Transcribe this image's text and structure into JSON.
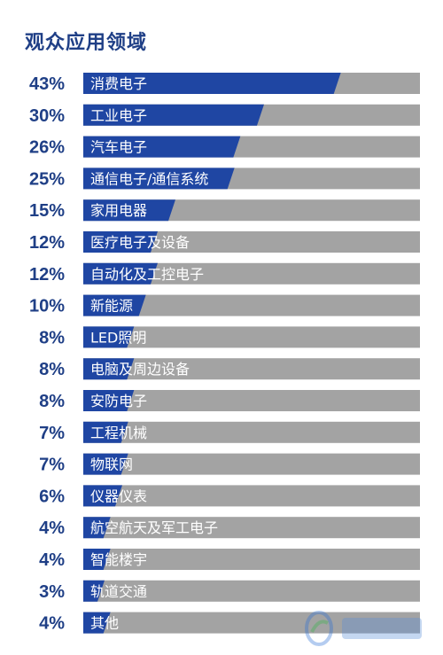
{
  "title": "观众应用领域",
  "chart_data": {
    "type": "bar",
    "orientation": "horizontal",
    "title": "观众应用领域",
    "categories": [
      "消费电子",
      "工业电子",
      "汽车电子",
      "通信电子/通信系统",
      "家用电器",
      "医疗电子及设备",
      "自动化及工控电子",
      "新能源",
      "LED照明",
      "电脑及周边设备",
      "安防电子",
      "工程机械",
      "物联网",
      "仪器仪表",
      "航空航天及军工电子",
      "智能楼宇",
      "轨道交通",
      "其他"
    ],
    "values": [
      43,
      30,
      26,
      25,
      15,
      12,
      12,
      10,
      8,
      8,
      8,
      7,
      7,
      6,
      4,
      4,
      3,
      4
    ],
    "value_labels": [
      "43%",
      "30%",
      "26%",
      "25%",
      "15%",
      "12%",
      "12%",
      "10%",
      "8%",
      "8%",
      "8%",
      "7%",
      "7%",
      "6%",
      "4%",
      "4%",
      "3%",
      "4%"
    ],
    "unit": "%",
    "xlim": [
      0,
      57
    ],
    "colors": {
      "value": "#1f46a3",
      "track": "#a3a3a3",
      "labels": "#1f3f86"
    },
    "grid": false,
    "legend": "none"
  }
}
